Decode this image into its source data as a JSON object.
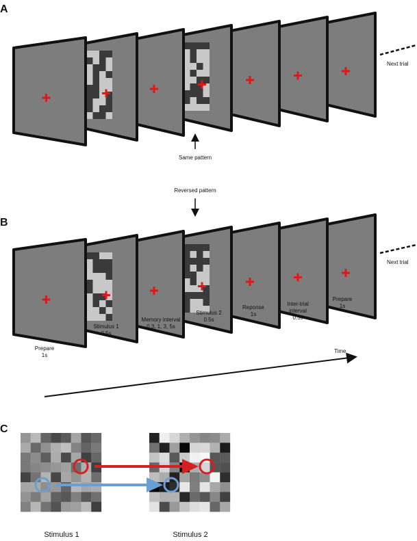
{
  "panel_a": {
    "label": "A",
    "annotation": "Same pattern",
    "next_trial": "Next trial"
  },
  "panel_b": {
    "label": "B",
    "annotation": "Reversed pattern",
    "next_trial": "Next trial",
    "frames": [
      {
        "lines": [
          "Prepare",
          "1s"
        ]
      },
      {
        "lines": [
          "Stimulus 1",
          "0.5s"
        ]
      },
      {
        "lines": [
          "Memory interval",
          "0.3, 1, 3, 5s"
        ]
      },
      {
        "lines": [
          "Stimulus 2",
          "0.5s"
        ]
      },
      {
        "lines": [
          "Reponse",
          "1s"
        ]
      },
      {
        "lines": [
          "Inter-trial",
          "interval",
          "0.5s"
        ]
      },
      {
        "lines": [
          "Prepare",
          "1s"
        ]
      }
    ],
    "time_label": "Time"
  },
  "panel_c": {
    "label": "C",
    "stimuli": [
      "Stimulus 1",
      "Stimulus 2"
    ]
  }
}
